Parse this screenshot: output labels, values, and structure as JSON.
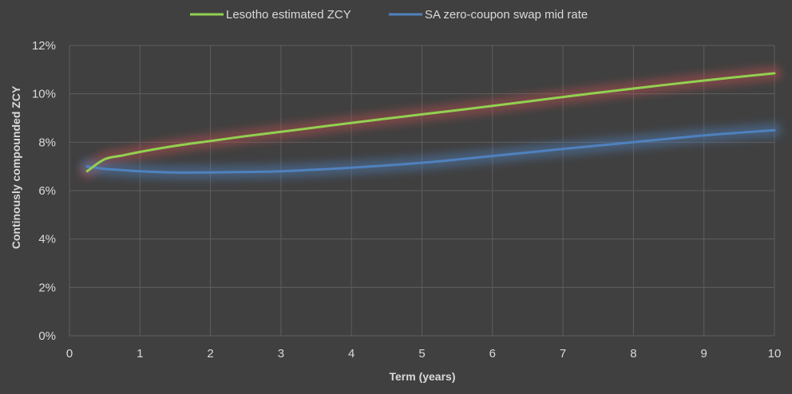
{
  "chart_data": {
    "type": "line",
    "xlabel": "Term (years)",
    "ylabel": "Continously compounded ZCY",
    "xlim": [
      0,
      10
    ],
    "ylim": [
      0,
      0.12
    ],
    "x_ticks": [
      "0",
      "1",
      "2",
      "3",
      "4",
      "5",
      "6",
      "7",
      "8",
      "9",
      "10"
    ],
    "y_ticks": [
      "0%",
      "2%",
      "4%",
      "6%",
      "8%",
      "10%",
      "12%"
    ],
    "grid": true,
    "legend_position": "top",
    "series": [
      {
        "name": "Lesotho estimated ZCY",
        "color": "#92d050",
        "glow": "#c0504d",
        "x": [
          0.25,
          0.5,
          0.75,
          1,
          1.5,
          2,
          2.5,
          3,
          4,
          5,
          6,
          7,
          8,
          9,
          10
        ],
        "y": [
          0.068,
          0.073,
          0.0745,
          0.076,
          0.0785,
          0.0805,
          0.0825,
          0.0843,
          0.088,
          0.0915,
          0.095,
          0.0987,
          0.1022,
          0.1055,
          0.1085
        ]
      },
      {
        "name": "SA zero-coupon swap mid rate",
        "color": "#4f81bd",
        "glow": "#4f81bd",
        "x": [
          0.25,
          0.5,
          0.75,
          1,
          1.5,
          2,
          2.5,
          3,
          4,
          5,
          6,
          7,
          8,
          9,
          10
        ],
        "y": [
          0.07,
          0.069,
          0.0685,
          0.068,
          0.0675,
          0.0675,
          0.0677,
          0.068,
          0.0695,
          0.0715,
          0.0743,
          0.0772,
          0.08,
          0.0828,
          0.085
        ]
      }
    ]
  }
}
